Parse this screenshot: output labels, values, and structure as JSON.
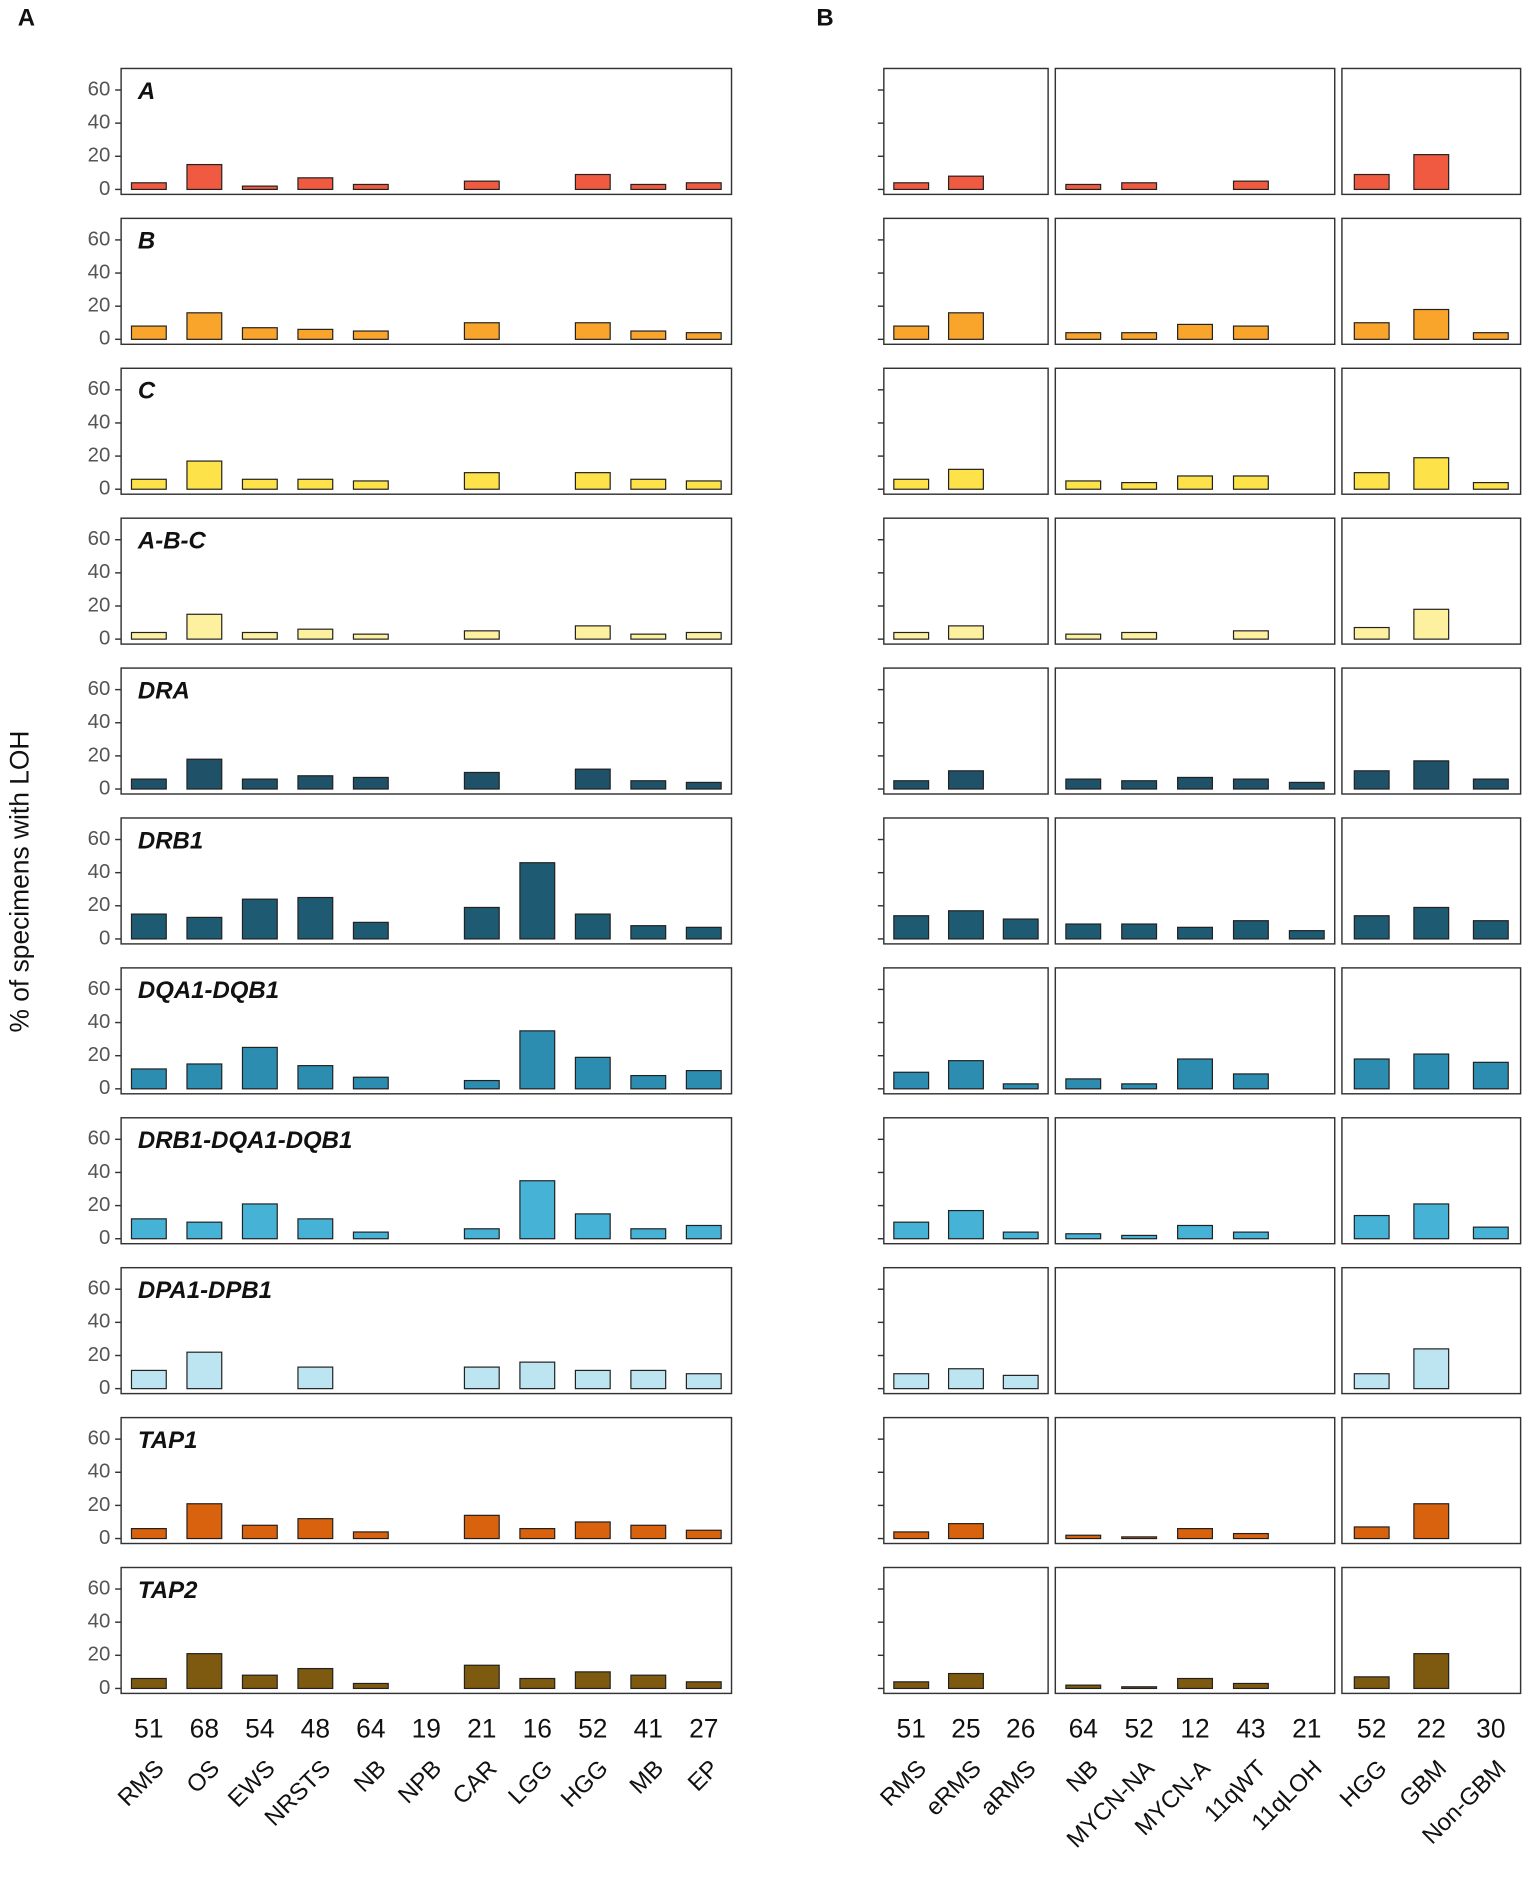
{
  "chart_data": [
    {
      "type": "bar",
      "title": "A",
      "y_label": "% of specimens with LOH",
      "categories": [
        "RMS",
        "OS",
        "EWS",
        "NRSTS",
        "NB",
        "NPB",
        "CAR",
        "LGG",
        "HGG",
        "MB",
        "EP"
      ],
      "counts": [
        51,
        68,
        54,
        48,
        64,
        19,
        21,
        16,
        52,
        41,
        27
      ],
      "ylim": [
        -3,
        73
      ],
      "yticks": [
        0,
        20,
        40,
        60
      ],
      "series": [
        {
          "name": "A",
          "color": "#f05a40",
          "values": [
            4,
            15,
            2,
            7,
            3,
            null,
            5,
            null,
            9,
            3,
            4
          ]
        },
        {
          "name": "B",
          "color": "#f9a52c",
          "values": [
            8,
            16,
            7,
            6,
            5,
            null,
            10,
            null,
            10,
            5,
            4
          ]
        },
        {
          "name": "C",
          "color": "#fde24a",
          "values": [
            6,
            17,
            6,
            6,
            5,
            null,
            10,
            null,
            10,
            6,
            5
          ]
        },
        {
          "name": "A-B-C",
          "color": "#fdf1a0",
          "values": [
            4,
            15,
            4,
            6,
            3,
            null,
            5,
            null,
            8,
            3,
            4
          ]
        },
        {
          "name": "DRA",
          "color": "#1f5168",
          "values": [
            6,
            18,
            6,
            8,
            7,
            null,
            10,
            null,
            12,
            5,
            4
          ]
        },
        {
          "name": "DRB1",
          "color": "#1e5a72",
          "values": [
            15,
            13,
            24,
            25,
            10,
            null,
            19,
            46,
            15,
            8,
            7
          ]
        },
        {
          "name": "DQA1-DQB1",
          "color": "#2c8db1",
          "values": [
            12,
            15,
            25,
            14,
            7,
            null,
            5,
            35,
            19,
            8,
            11
          ]
        },
        {
          "name": "DRB1-DQA1-DQB1",
          "color": "#46b2d6",
          "values": [
            12,
            10,
            21,
            12,
            4,
            null,
            6,
            35,
            15,
            6,
            8
          ]
        },
        {
          "name": "DPA1-DPB1",
          "color": "#bce5f1",
          "values": [
            11,
            22,
            null,
            13,
            null,
            null,
            13,
            16,
            11,
            11,
            9
          ]
        },
        {
          "name": "TAP1",
          "color": "#d9620e",
          "values": [
            6,
            21,
            8,
            12,
            4,
            null,
            14,
            6,
            10,
            8,
            5
          ]
        },
        {
          "name": "TAP2",
          "color": "#7d5a10",
          "values": [
            6,
            21,
            8,
            12,
            3,
            null,
            14,
            6,
            10,
            8,
            4
          ]
        }
      ]
    },
    {
      "type": "bar",
      "title": "B",
      "categories": [
        "RMS",
        "eRMS",
        "aRMS"
      ],
      "counts": [
        51,
        25,
        26
      ],
      "ylim": [
        -3,
        73
      ],
      "yticks": [
        0,
        20,
        40,
        60
      ],
      "series": [
        {
          "color": "#f05a40",
          "values": [
            4,
            8,
            null
          ]
        },
        {
          "color": "#f9a52c",
          "values": [
            8,
            16,
            null
          ]
        },
        {
          "color": "#fde24a",
          "values": [
            6,
            12,
            null
          ]
        },
        {
          "color": "#fdf1a0",
          "values": [
            4,
            8,
            null
          ]
        },
        {
          "color": "#1f5168",
          "values": [
            5,
            11,
            null
          ]
        },
        {
          "color": "#1e5a72",
          "values": [
            14,
            17,
            12
          ]
        },
        {
          "color": "#2c8db1",
          "values": [
            10,
            17,
            3
          ]
        },
        {
          "color": "#46b2d6",
          "values": [
            10,
            17,
            4
          ]
        },
        {
          "color": "#bce5f1",
          "values": [
            9,
            12,
            8
          ]
        },
        {
          "color": "#d9620e",
          "values": [
            4,
            9,
            null
          ]
        },
        {
          "color": "#7d5a10",
          "values": [
            4,
            9,
            null
          ]
        }
      ]
    },
    {
      "type": "bar",
      "categories": [
        "NB",
        "MYCN-NA",
        "MYCN-A",
        "11qWT",
        "11qLOH"
      ],
      "counts": [
        64,
        52,
        12,
        43,
        21
      ],
      "ylim": [
        -3,
        73
      ],
      "series": [
        {
          "color": "#f05a40",
          "values": [
            3,
            4,
            null,
            5,
            null
          ]
        },
        {
          "color": "#f9a52c",
          "values": [
            4,
            4,
            9,
            8,
            null
          ]
        },
        {
          "color": "#fde24a",
          "values": [
            5,
            4,
            8,
            8,
            null
          ]
        },
        {
          "color": "#fdf1a0",
          "values": [
            3,
            4,
            null,
            5,
            null
          ]
        },
        {
          "color": "#1f5168",
          "values": [
            6,
            5,
            7,
            6,
            4
          ]
        },
        {
          "color": "#1e5a72",
          "values": [
            9,
            9,
            7,
            11,
            5
          ]
        },
        {
          "color": "#2c8db1",
          "values": [
            6,
            3,
            18,
            9,
            null
          ]
        },
        {
          "color": "#46b2d6",
          "values": [
            3,
            2,
            8,
            4,
            null
          ]
        },
        {
          "color": "#bce5f1",
          "values": [
            null,
            null,
            null,
            null,
            null
          ]
        },
        {
          "color": "#d9620e",
          "values": [
            2,
            1,
            6,
            3,
            null
          ]
        },
        {
          "color": "#7d5a10",
          "values": [
            2,
            1,
            6,
            3,
            null
          ]
        }
      ]
    },
    {
      "type": "bar",
      "categories": [
        "HGG",
        "GBM",
        "Non-GBM"
      ],
      "counts": [
        52,
        22,
        30
      ],
      "ylim": [
        -3,
        73
      ],
      "series": [
        {
          "color": "#f05a40",
          "values": [
            9,
            21,
            null
          ]
        },
        {
          "color": "#f9a52c",
          "values": [
            10,
            18,
            4
          ]
        },
        {
          "color": "#fde24a",
          "values": [
            10,
            19,
            4
          ]
        },
        {
          "color": "#fdf1a0",
          "values": [
            7,
            18,
            null
          ]
        },
        {
          "color": "#1f5168",
          "values": [
            11,
            17,
            6
          ]
        },
        {
          "color": "#1e5a72",
          "values": [
            14,
            19,
            11
          ]
        },
        {
          "color": "#2c8db1",
          "values": [
            18,
            21,
            16
          ]
        },
        {
          "color": "#46b2d6",
          "values": [
            14,
            21,
            7
          ]
        },
        {
          "color": "#bce5f1",
          "values": [
            9,
            24,
            null
          ]
        },
        {
          "color": "#d9620e",
          "values": [
            7,
            21,
            null
          ]
        },
        {
          "color": "#7d5a10",
          "values": [
            7,
            21,
            null
          ]
        }
      ]
    }
  ]
}
